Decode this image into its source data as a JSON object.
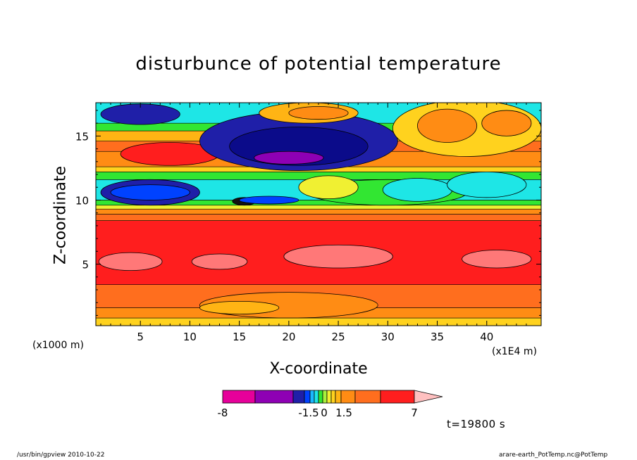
{
  "chart_data": {
    "type": "heatmap",
    "title": "disturbunce of potential temperature",
    "xlabel": "X-coordinate",
    "ylabel": "Z-coordinate",
    "x_unit_label": "(x1E4 m)",
    "z_unit_label": "(x1000 m)",
    "xlim": [
      0.5,
      45.5
    ],
    "ylim": [
      0.2,
      17.6
    ],
    "x_ticks": [
      5,
      10,
      15,
      20,
      25,
      30,
      35,
      40
    ],
    "x_tick_labels": [
      "5",
      "10",
      "15",
      "20",
      "25",
      "30",
      "35",
      "40"
    ],
    "y_ticks": [
      5,
      10,
      15
    ],
    "y_tick_labels": [
      "5",
      "10",
      "15"
    ],
    "time_label": "t=19800 s",
    "colorbar": {
      "tick_labels": [
        "-8",
        "-1.5",
        "0",
        "1.5",
        "7"
      ],
      "colors": [
        "#e6009a",
        "#8e00b4",
        "#1f1fa8",
        "#0042ff",
        "#1ab8ff",
        "#1ee6e6",
        "#32e632",
        "#a8f03c",
        "#f0f032",
        "#ffd21e",
        "#ffb414",
        "#ff8c14",
        "#ff6e1e",
        "#ff1e1e",
        "#ff7878",
        "#ffc0c0"
      ],
      "bounds": [
        "-8",
        "-1.5",
        "0",
        "1.5",
        "7"
      ]
    },
    "bands": [
      {
        "z0": 0.2,
        "z1": 0.8,
        "color": "#ffd21e"
      },
      {
        "z0": 0.8,
        "z1": 1.6,
        "color": "#ff8c14"
      },
      {
        "z0": 1.6,
        "z1": 3.4,
        "color": "#ff6e1e"
      },
      {
        "z0": 3.4,
        "z1": 8.4,
        "color": "#ff1e1e"
      },
      {
        "z0": 8.4,
        "z1": 8.9,
        "color": "#ff6e1e"
      },
      {
        "z0": 8.9,
        "z1": 9.3,
        "color": "#ff8c14"
      },
      {
        "z0": 9.3,
        "z1": 9.6,
        "color": "#f0f032"
      },
      {
        "z0": 9.6,
        "z1": 10.0,
        "color": "#32e632"
      },
      {
        "z0": 10.0,
        "z1": 11.6,
        "color": "#1ee6e6"
      },
      {
        "z0": 11.6,
        "z1": 12.2,
        "color": "#32e632"
      },
      {
        "z0": 12.2,
        "z1": 12.6,
        "color": "#ffd21e"
      },
      {
        "z0": 12.6,
        "z1": 13.8,
        "color": "#ff8c14"
      },
      {
        "z0": 13.8,
        "z1": 14.6,
        "color": "#ff6e1e"
      },
      {
        "z0": 14.6,
        "z1": 15.4,
        "color": "#ffb414"
      },
      {
        "z0": 15.4,
        "z1": 16.0,
        "color": "#32e632"
      },
      {
        "z0": 16.0,
        "z1": 17.6,
        "color": "#1ee6e6"
      }
    ],
    "features": [
      {
        "shape": "ellipse",
        "cx": 4,
        "cz": 5.2,
        "rx": 3.2,
        "rz": 0.7,
        "color": "#ff7878"
      },
      {
        "shape": "ellipse",
        "cx": 13,
        "cz": 5.2,
        "rx": 2.8,
        "rz": 0.6,
        "color": "#ff7878"
      },
      {
        "shape": "ellipse",
        "cx": 25,
        "cz": 5.6,
        "rx": 5.5,
        "rz": 0.9,
        "color": "#ff7878"
      },
      {
        "shape": "ellipse",
        "cx": 41,
        "cz": 5.4,
        "rx": 3.5,
        "rz": 0.7,
        "color": "#ff7878"
      },
      {
        "shape": "ellipse",
        "cx": 20,
        "cz": 1.8,
        "rx": 9,
        "rz": 1.0,
        "color": "#ff8c14"
      },
      {
        "shape": "ellipse",
        "cx": 15,
        "cz": 1.6,
        "rx": 4,
        "rz": 0.5,
        "color": "#ffb414"
      },
      {
        "shape": "ellipse",
        "cx": 6,
        "cz": 10.6,
        "rx": 5,
        "rz": 1.0,
        "color": "#1f1fa8"
      },
      {
        "shape": "ellipse",
        "cx": 6,
        "cz": 10.6,
        "rx": 4,
        "rz": 0.6,
        "color": "#0042ff"
      },
      {
        "shape": "ellipse",
        "cx": 30,
        "cz": 10.6,
        "rx": 8,
        "rz": 1.0,
        "color": "#32e632"
      },
      {
        "shape": "ellipse",
        "cx": 33,
        "cz": 10.8,
        "rx": 3.5,
        "rz": 0.9,
        "color": "#1ee6e6"
      },
      {
        "shape": "ellipse",
        "cx": 40,
        "cz": 11.2,
        "rx": 4,
        "rz": 1.0,
        "color": "#1ee6e6"
      },
      {
        "shape": "ellipse",
        "cx": 24,
        "cz": 11.0,
        "rx": 3,
        "rz": 0.9,
        "color": "#f0f032"
      },
      {
        "shape": "ellipse",
        "cx": 8,
        "cz": 13.6,
        "rx": 5,
        "rz": 0.9,
        "color": "#ff1e1e"
      },
      {
        "shape": "ellipse",
        "cx": 21,
        "cz": 14.6,
        "rx": 10,
        "rz": 2.3,
        "color": "#1f1fa8"
      },
      {
        "shape": "ellipse",
        "cx": 21,
        "cz": 14.2,
        "rx": 7,
        "rz": 1.5,
        "color": "#0b0b8a"
      },
      {
        "shape": "ellipse",
        "cx": 20,
        "cz": 13.3,
        "rx": 3.5,
        "rz": 0.5,
        "color": "#8e00b4"
      },
      {
        "shape": "ellipse",
        "cx": 5,
        "cz": 16.7,
        "rx": 4,
        "rz": 0.8,
        "color": "#1f1fa8"
      },
      {
        "shape": "ellipse",
        "cx": 22,
        "cz": 16.8,
        "rx": 5,
        "rz": 0.8,
        "color": "#ffb414"
      },
      {
        "shape": "ellipse",
        "cx": 23,
        "cz": 16.8,
        "rx": 3,
        "rz": 0.5,
        "color": "#ff8c14"
      },
      {
        "shape": "ellipse",
        "cx": 38,
        "cz": 15.6,
        "rx": 7.5,
        "rz": 2.2,
        "color": "#ffd21e"
      },
      {
        "shape": "ellipse",
        "cx": 36,
        "cz": 15.8,
        "rx": 3,
        "rz": 1.3,
        "color": "#ff8c14"
      },
      {
        "shape": "ellipse",
        "cx": 42,
        "cz": 16.0,
        "rx": 2.5,
        "rz": 1.0,
        "color": "#ff8c14"
      },
      {
        "shape": "ellipse",
        "cx": 15.5,
        "cz": 9.9,
        "rx": 1.2,
        "rz": 0.3,
        "color": "#111111"
      },
      {
        "shape": "ellipse",
        "cx": 18,
        "cz": 10.0,
        "rx": 3,
        "rz": 0.3,
        "color": "#0042ff"
      }
    ]
  },
  "footer": {
    "left": "/usr/bin/gpview  2010-10-22",
    "right": "arare-earth_PotTemp.nc@PotTemp"
  }
}
